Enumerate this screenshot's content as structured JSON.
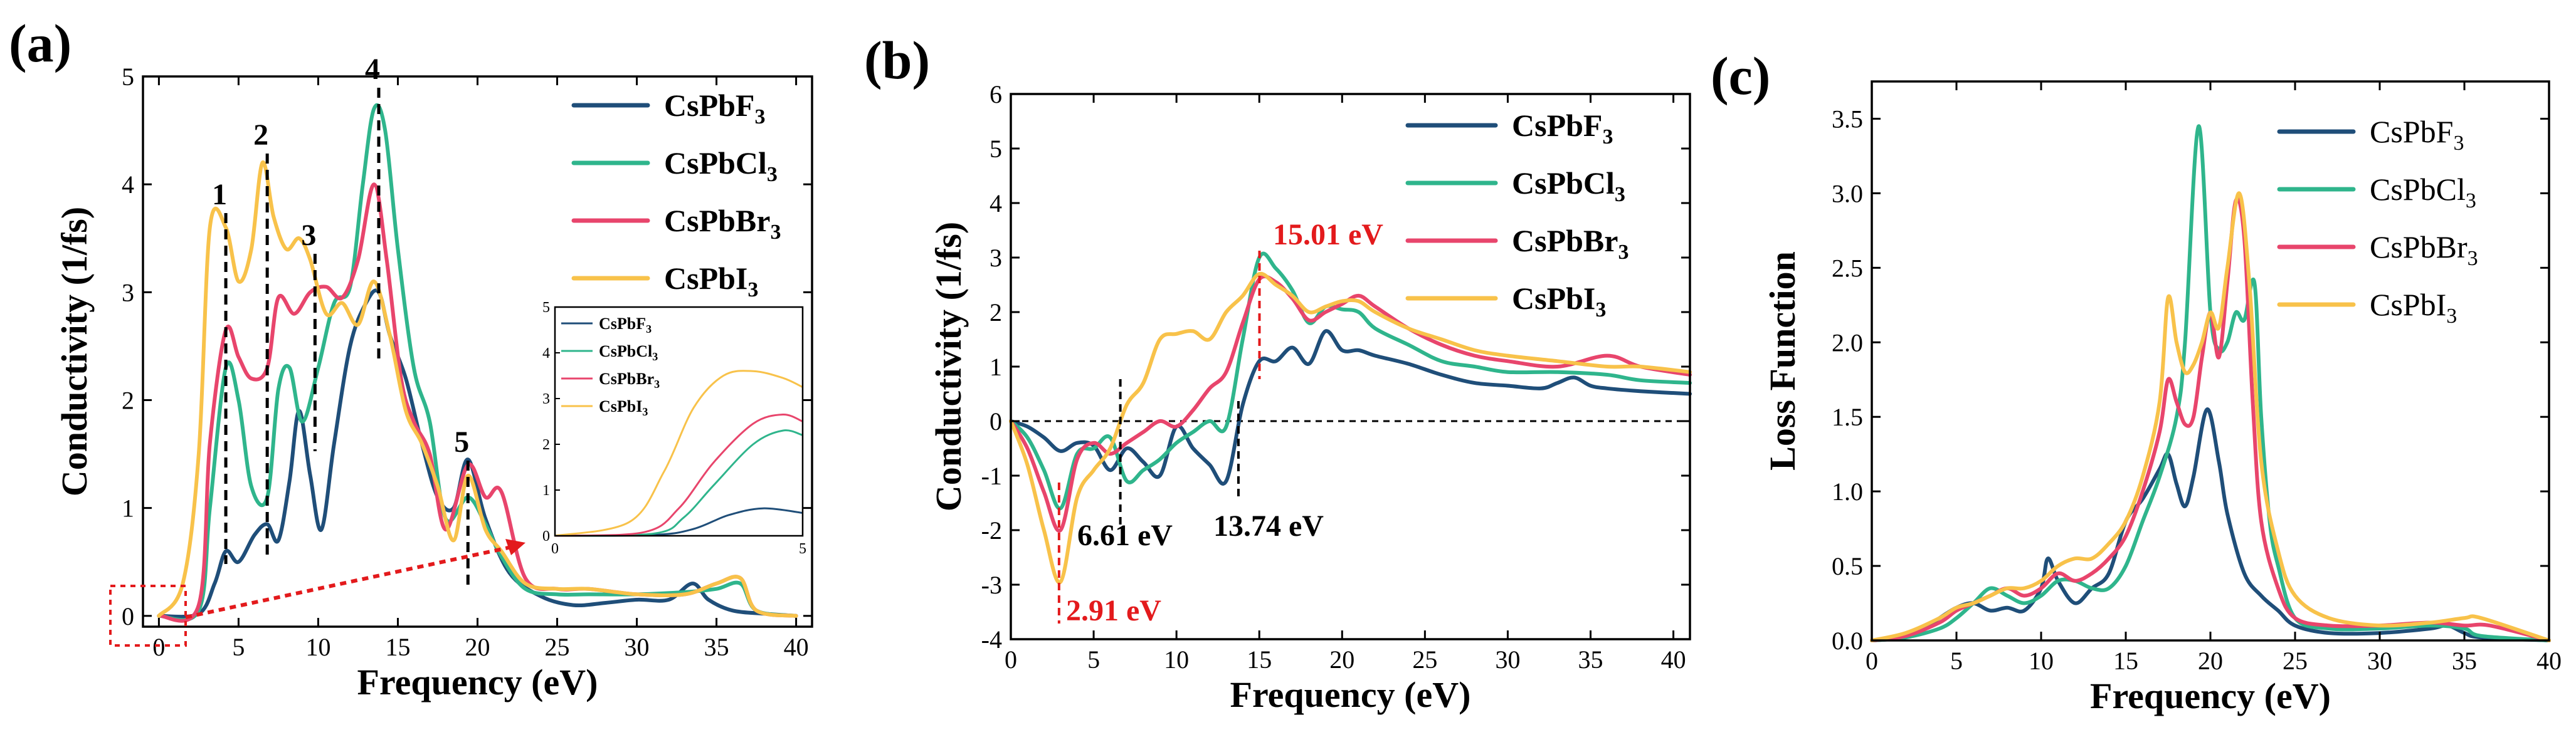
{
  "colors": {
    "CsPbF3": "#1f4e79",
    "CsPbCl3": "#2fb58c",
    "CsPbBr3": "#e8456c",
    "CsPbI3": "#f8c24a",
    "annotation_red": "#e31a1c"
  },
  "chart_data": [
    {
      "type": "line",
      "panel_label": "(a)",
      "xlabel": "Frequency (eV)",
      "ylabel": "Conductivity (1/fs)",
      "xlim": [
        -1,
        41
      ],
      "ylim": [
        -0.1,
        5
      ],
      "xticks": [
        0,
        5,
        10,
        15,
        20,
        25,
        30,
        35,
        40
      ],
      "yticks": [
        0,
        1,
        2,
        3,
        4,
        5
      ],
      "legend": [
        "CsPbF",
        "CsPbCl",
        "CsPbBr",
        "CsPbI"
      ],
      "legend_subscript": "3",
      "peaks": [
        {
          "label": "1",
          "x": 4.2
        },
        {
          "label": "2",
          "x": 6.8
        },
        {
          "label": "3",
          "x": 9.8
        },
        {
          "label": "4",
          "x": 13.8
        },
        {
          "label": "5",
          "x": 19.4
        }
      ],
      "series": [
        {
          "name": "CsPbF3",
          "x": [
            0,
            2.5,
            3.5,
            4.2,
            5,
            6,
            6.8,
            7.5,
            8.2,
            8.8,
            9.5,
            10.2,
            11,
            12,
            13,
            13.8,
            14.5,
            15.5,
            16.5,
            17.5,
            18.5,
            19.4,
            20.5,
            22,
            24,
            26,
            28,
            30,
            32,
            33.5,
            34.5,
            36,
            38,
            40
          ],
          "y": [
            0,
            0.02,
            0.3,
            0.6,
            0.5,
            0.75,
            0.85,
            0.7,
            1.25,
            1.9,
            1.3,
            0.8,
            1.6,
            2.5,
            2.9,
            3.0,
            2.6,
            2.2,
            1.6,
            1.1,
            1.0,
            1.45,
            0.9,
            0.4,
            0.18,
            0.1,
            0.12,
            0.15,
            0.15,
            0.3,
            0.15,
            0.05,
            0.02,
            0
          ]
        },
        {
          "name": "CsPbCl3",
          "x": [
            0,
            2.5,
            3.2,
            4.2,
            5,
            5.8,
            6.8,
            7.5,
            8.2,
            9,
            10,
            11,
            12,
            12.8,
            13.5,
            14.2,
            15,
            16,
            17,
            18,
            19.4,
            20.5,
            21.5,
            23,
            25,
            27,
            30,
            33,
            35,
            36.5,
            37.5,
            40
          ],
          "y": [
            0,
            0.05,
            1.0,
            2.3,
            2.0,
            1.2,
            1.1,
            2.1,
            2.3,
            1.8,
            2.3,
            2.9,
            3.05,
            4.0,
            4.7,
            4.5,
            3.4,
            2.3,
            1.8,
            0.9,
            1.1,
            0.85,
            0.55,
            0.25,
            0.2,
            0.2,
            0.2,
            0.22,
            0.25,
            0.3,
            0.05,
            0
          ]
        },
        {
          "name": "CsPbBr3",
          "x": [
            0,
            2.5,
            3.2,
            4.2,
            5,
            5.8,
            6.8,
            7.5,
            8.5,
            9.5,
            10.5,
            11.5,
            12.5,
            13.5,
            14.3,
            15.2,
            16,
            17,
            18,
            19.4,
            20.5,
            21.5,
            23,
            25,
            27,
            30,
            33,
            35,
            36.5,
            37.5,
            40
          ],
          "y": [
            0,
            0.1,
            1.6,
            2.65,
            2.4,
            2.2,
            2.3,
            2.95,
            2.8,
            3.0,
            3.05,
            2.95,
            3.3,
            4.0,
            3.3,
            2.2,
            1.8,
            1.5,
            0.8,
            1.4,
            1.1,
            1.15,
            0.35,
            0.25,
            0.25,
            0.2,
            0.2,
            0.3,
            0.35,
            0.05,
            0
          ]
        },
        {
          "name": "CsPbI3",
          "x": [
            0,
            1.5,
            2.5,
            3.2,
            4.2,
            5,
            5.8,
            6.5,
            7.2,
            8,
            8.8,
            9.5,
            10.5,
            11.5,
            12.5,
            13.5,
            14.5,
            15.5,
            16.5,
            17.5,
            18.5,
            19.4,
            20.5,
            21.5,
            23,
            25,
            27,
            30,
            33,
            35,
            36.5,
            37.5,
            40
          ],
          "y": [
            0,
            0.3,
            1.5,
            3.6,
            3.6,
            3.1,
            3.4,
            4.2,
            3.7,
            3.4,
            3.5,
            3.3,
            2.8,
            2.9,
            2.7,
            3.1,
            2.6,
            1.9,
            1.6,
            1.2,
            0.7,
            1.3,
            0.8,
            0.6,
            0.3,
            0.25,
            0.25,
            0.2,
            0.2,
            0.3,
            0.35,
            0.05,
            0
          ]
        }
      ],
      "inset": {
        "xlim": [
          0,
          5
        ],
        "ylim": [
          0,
          5
        ],
        "xticks": [
          0,
          5
        ],
        "yticks": [
          0,
          1,
          2,
          3,
          4,
          5
        ],
        "series": [
          {
            "name": "CsPbF3",
            "x": [
              0,
              2,
              2.8,
              3.5,
              4.2,
              5
            ],
            "y": [
              0,
              0.02,
              0.15,
              0.45,
              0.6,
              0.5
            ]
          },
          {
            "name": "CsPbCl3",
            "x": [
              0,
              2,
              2.6,
              3.2,
              4,
              4.6,
              5
            ],
            "y": [
              0,
              0.05,
              0.4,
              1.1,
              2.0,
              2.3,
              2.2
            ]
          },
          {
            "name": "CsPbBr3",
            "x": [
              0,
              1.8,
              2.5,
              3.2,
              4,
              4.6,
              5
            ],
            "y": [
              0,
              0.08,
              0.6,
              1.6,
              2.45,
              2.65,
              2.5
            ]
          },
          {
            "name": "CsPbI3",
            "x": [
              0,
              1.5,
              2.2,
              2.8,
              3.4,
              4,
              4.6,
              5
            ],
            "y": [
              0,
              0.3,
              1.4,
              2.8,
              3.5,
              3.6,
              3.45,
              3.25
            ]
          }
        ]
      }
    },
    {
      "type": "line",
      "panel_label": "(b)",
      "xlabel": "Frequency (eV)",
      "ylabel": "Conductivity (1/fs)",
      "xlim": [
        0,
        41
      ],
      "ylim": [
        -4,
        6
      ],
      "xticks": [
        0,
        5,
        10,
        15,
        20,
        25,
        30,
        35,
        40
      ],
      "yticks": [
        -4,
        -3,
        -2,
        -1,
        0,
        1,
        2,
        3,
        4,
        5,
        6
      ],
      "legend": [
        "CsPbF",
        "CsPbCl",
        "CsPbBr",
        "CsPbI"
      ],
      "legend_subscript": "3",
      "annotations": [
        {
          "text": "15.01 eV",
          "x": 15.01,
          "color": "red"
        },
        {
          "text": "6.61 eV",
          "x": 6.61,
          "color": "black"
        },
        {
          "text": "13.74 eV",
          "x": 13.74,
          "color": "black"
        },
        {
          "text": "2.91 eV",
          "x": 2.91,
          "color": "red"
        }
      ],
      "series": [
        {
          "name": "CsPbF3",
          "x": [
            0,
            1,
            2,
            3,
            4,
            5,
            6,
            7,
            8,
            9,
            10,
            11,
            12,
            13,
            14,
            15,
            16,
            17,
            18,
            19,
            20,
            21,
            22,
            24,
            26,
            28,
            30,
            32,
            33,
            34,
            35,
            36,
            38,
            41
          ],
          "y": [
            0,
            -0.1,
            -0.3,
            -0.55,
            -0.4,
            -0.45,
            -0.9,
            -0.5,
            -0.75,
            -1.0,
            -0.1,
            -0.5,
            -0.8,
            -1.1,
            0.3,
            1.1,
            1.1,
            1.35,
            1.05,
            1.65,
            1.3,
            1.3,
            1.2,
            1.05,
            0.85,
            0.7,
            0.65,
            0.6,
            0.7,
            0.8,
            0.65,
            0.6,
            0.55,
            0.5
          ]
        },
        {
          "name": "CsPbCl3",
          "x": [
            0,
            1,
            2,
            3,
            4,
            5,
            6,
            7,
            8,
            9,
            10,
            11,
            12,
            13,
            14,
            15,
            16,
            17,
            18,
            19,
            20,
            21,
            22,
            24,
            26,
            28,
            30,
            33,
            36,
            38,
            41
          ],
          "y": [
            0,
            -0.3,
            -0.9,
            -1.6,
            -0.6,
            -0.5,
            -0.3,
            -1.1,
            -0.9,
            -0.7,
            -0.4,
            -0.2,
            0.0,
            -0.1,
            1.5,
            3.0,
            2.8,
            2.4,
            1.8,
            2.1,
            2.05,
            2.0,
            1.7,
            1.4,
            1.1,
            1.0,
            0.9,
            0.9,
            0.85,
            0.75,
            0.7
          ]
        },
        {
          "name": "CsPbBr3",
          "x": [
            0,
            1,
            2,
            3,
            4,
            5,
            6,
            7,
            8,
            9,
            10,
            11,
            12,
            13,
            14,
            15,
            16,
            17,
            18,
            19,
            20,
            21,
            22,
            24,
            26,
            28,
            30,
            33,
            36,
            38,
            41
          ],
          "y": [
            0,
            -0.5,
            -1.3,
            -2.0,
            -0.7,
            -0.4,
            -0.6,
            -0.4,
            -0.2,
            0.0,
            -0.1,
            0.2,
            0.6,
            0.9,
            1.8,
            2.6,
            2.55,
            2.25,
            1.85,
            2.0,
            2.15,
            2.3,
            2.1,
            1.7,
            1.4,
            1.2,
            1.1,
            1.0,
            1.2,
            1.0,
            0.85
          ]
        },
        {
          "name": "CsPbI3",
          "x": [
            0,
            1,
            2,
            3,
            4,
            5,
            6,
            7,
            8,
            9,
            10,
            11,
            12,
            13,
            14,
            15,
            16,
            17,
            18,
            19,
            20,
            21,
            22,
            24,
            26,
            28,
            30,
            33,
            36,
            38,
            41
          ],
          "y": [
            0,
            -0.8,
            -2.0,
            -2.95,
            -1.4,
            -0.9,
            -0.5,
            0.3,
            0.7,
            1.5,
            1.6,
            1.65,
            1.5,
            2.0,
            2.3,
            2.7,
            2.5,
            2.3,
            2.0,
            2.1,
            2.2,
            2.2,
            2.0,
            1.7,
            1.5,
            1.3,
            1.2,
            1.1,
            1.0,
            1.0,
            0.9
          ]
        }
      ]
    },
    {
      "type": "line",
      "panel_label": "(c)",
      "xlabel": "Frequency (eV)",
      "ylabel": "Loss Function",
      "xlim": [
        0,
        40
      ],
      "ylim": [
        0,
        3.75
      ],
      "xticks": [
        0,
        5,
        10,
        15,
        20,
        25,
        30,
        35,
        40
      ],
      "yticks": [
        0.0,
        0.5,
        1.0,
        1.5,
        2.0,
        2.5,
        3.0,
        3.5
      ],
      "legend": [
        "CsPbF",
        "CsPbCl",
        "CsPbBr",
        "CsPbI"
      ],
      "legend_subscript": "3",
      "series": [
        {
          "name": "CsPbF3",
          "x": [
            0,
            2,
            3,
            4,
            5,
            6,
            7,
            8,
            9,
            10,
            10.4,
            11,
            12,
            13,
            14,
            15,
            16,
            17,
            17.5,
            18,
            18.5,
            19,
            19.8,
            20.5,
            21,
            22,
            23,
            24,
            25,
            27,
            30,
            33,
            34,
            35,
            36,
            40
          ],
          "y": [
            0,
            0.02,
            0.08,
            0.15,
            0.22,
            0.25,
            0.2,
            0.22,
            0.2,
            0.35,
            0.55,
            0.4,
            0.25,
            0.35,
            0.45,
            0.8,
            0.95,
            1.15,
            1.25,
            1.05,
            0.9,
            1.1,
            1.55,
            1.2,
            0.85,
            0.45,
            0.3,
            0.2,
            0.1,
            0.05,
            0.05,
            0.08,
            0.1,
            0.05,
            0.02,
            0
          ]
        },
        {
          "name": "CsPbCl3",
          "x": [
            0,
            2,
            4,
            5,
            6,
            7,
            8,
            9,
            10,
            11,
            12,
            13,
            14,
            15,
            16,
            17,
            18,
            18.5,
            19.3,
            20,
            20.5,
            21,
            21.5,
            22,
            22.6,
            23,
            23.5,
            24,
            25,
            27,
            30,
            33,
            35,
            36,
            40
          ],
          "y": [
            0,
            0.02,
            0.08,
            0.15,
            0.25,
            0.35,
            0.3,
            0.25,
            0.3,
            0.4,
            0.4,
            0.35,
            0.35,
            0.5,
            0.8,
            1.1,
            1.5,
            2.0,
            3.45,
            2.2,
            1.95,
            2.0,
            2.2,
            2.15,
            2.4,
            1.5,
            0.8,
            0.5,
            0.15,
            0.08,
            0.08,
            0.1,
            0.08,
            0.03,
            0
          ]
        },
        {
          "name": "CsPbBr3",
          "x": [
            0,
            2,
            4,
            5,
            6,
            7,
            8,
            9,
            10,
            11,
            12,
            13,
            14,
            15,
            16,
            17,
            17.5,
            18,
            18.5,
            19,
            19.5,
            20,
            20.5,
            21,
            21.5,
            22,
            22.5,
            23,
            24,
            25,
            27,
            30,
            33,
            35,
            36.5,
            40
          ],
          "y": [
            0,
            0.03,
            0.12,
            0.2,
            0.25,
            0.3,
            0.35,
            0.3,
            0.35,
            0.45,
            0.4,
            0.45,
            0.55,
            0.7,
            1.0,
            1.4,
            1.75,
            1.6,
            1.45,
            1.5,
            1.9,
            2.2,
            1.9,
            2.4,
            2.95,
            2.7,
            1.6,
            0.8,
            0.35,
            0.15,
            0.1,
            0.1,
            0.12,
            0.1,
            0.1,
            0
          ]
        },
        {
          "name": "CsPbI3",
          "x": [
            0,
            2,
            4,
            5,
            6,
            7,
            8,
            9,
            10,
            11,
            12,
            13,
            14,
            15,
            16,
            17,
            17.5,
            18,
            18.5,
            19,
            19.5,
            20,
            20.5,
            21,
            21.7,
            22.3,
            23,
            24,
            25,
            27,
            30,
            33,
            35,
            36,
            40
          ],
          "y": [
            0,
            0.05,
            0.15,
            0.22,
            0.25,
            0.3,
            0.35,
            0.35,
            0.4,
            0.5,
            0.55,
            0.55,
            0.65,
            0.8,
            1.1,
            1.6,
            2.3,
            2.0,
            1.8,
            1.85,
            2.0,
            2.2,
            2.1,
            2.5,
            3.0,
            2.4,
            1.2,
            0.6,
            0.3,
            0.15,
            0.1,
            0.12,
            0.15,
            0.15,
            0
          ]
        }
      ]
    }
  ]
}
